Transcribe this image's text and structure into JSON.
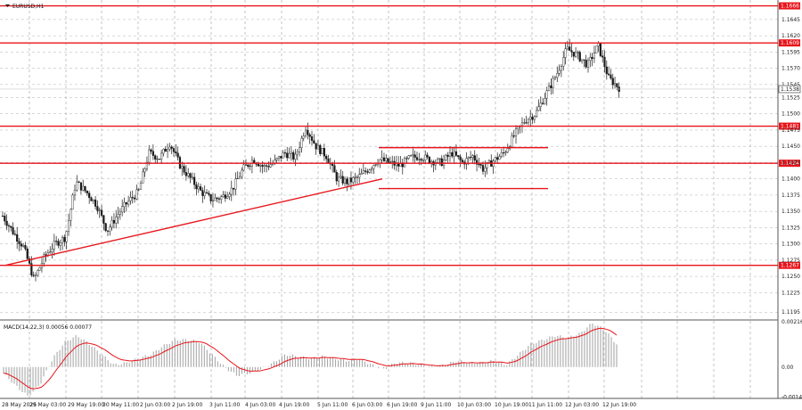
{
  "chart_data": [
    {
      "type": "candlestick",
      "title": "EURUSD,H1",
      "title_icon": "triangle-down-icon",
      "grid": true,
      "grid_style": "dashed",
      "ylim": [
        1.1183,
        1.1675
      ],
      "y_ticks": [
        "1.1645",
        "1.1620",
        "1.1595",
        "1.1570",
        "1.1545",
        "1.1525",
        "1.1500",
        "1.1475",
        "1.1450",
        "1.1425",
        "1.1400",
        "1.1375",
        "1.1350",
        "1.1325",
        "1.1300",
        "1.1275",
        "1.1250",
        "1.1225",
        "1.1195"
      ],
      "x_ticks": [
        "28 May 2025",
        "29 May 03:00",
        "29 May 19:00",
        "30 May 11:00",
        "2 Jun 03:00",
        "2 Jun 19:00",
        "3 Jun 11:00",
        "4 Jun 03:00",
        "4 Jun 19:00",
        "5 Jun 11:00",
        "6 Jun 03:00",
        "6 Jun 19:00",
        "9 Jun 11:00",
        "10 Jun 03:00",
        "10 Jun 19:00",
        "11 Jun 11:00",
        "12 Jun 03:00",
        "12 Jun 19:00"
      ],
      "current_price": "1.1538",
      "price_path": [
        1.1343,
        1.1318,
        1.1295,
        1.1245,
        1.128,
        1.13,
        1.131,
        1.1395,
        1.138,
        1.136,
        1.132,
        1.1345,
        1.1365,
        1.138,
        1.144,
        1.1432,
        1.1455,
        1.142,
        1.14,
        1.138,
        1.1368,
        1.1372,
        1.1385,
        1.1415,
        1.143,
        1.1418,
        1.1425,
        1.144,
        1.1432,
        1.148,
        1.145,
        1.1435,
        1.14,
        1.1395,
        1.1402,
        1.1415,
        1.143,
        1.1425,
        1.142,
        1.1432,
        1.1435,
        1.1428,
        1.1425,
        1.144,
        1.1425,
        1.1435,
        1.1415,
        1.1428,
        1.144,
        1.1468,
        1.149,
        1.15,
        1.153,
        1.156,
        1.16,
        1.159,
        1.1575,
        1.1605,
        1.1555,
        1.154
      ],
      "levels": [
        {
          "label": "1.1666",
          "value": 1.1666
        },
        {
          "label": "1.1609",
          "value": 1.1609
        },
        {
          "label": "1.1481",
          "value": 1.1481
        },
        {
          "label": "1.1424",
          "value": 1.1424
        },
        {
          "label": "1.1267",
          "value": 1.1267
        }
      ],
      "trendline": {
        "from": {
          "x": "28 May 2025",
          "y": 1.1267
        },
        "to": {
          "x": "6 Jun 03:00",
          "y": 1.14
        }
      },
      "channel": {
        "x_from": "6 Jun 03:00",
        "x_to": "11 Jun 11:00",
        "upper": 1.1448,
        "lower": 1.1385
      }
    },
    {
      "type": "histogram",
      "title": "MACD(14,22,3) 0.00056 0.00077",
      "ylim": [
        -0.0015,
        0.00225
      ],
      "y_ticks": [
        "0.00216",
        "0.00",
        "-0.00143"
      ],
      "histogram_path": [
        -0.0003,
        -0.0009,
        -0.0014,
        -0.0008,
        0.0004,
        0.0012,
        0.0015,
        0.0011,
        0.0006,
        0.0001,
        0.0002,
        0.0004,
        0.0006,
        0.001,
        0.0013,
        0.0013,
        0.0012,
        0.0006,
        0.0,
        -0.0004,
        -0.0003,
        -0.0001,
        0.0002,
        0.0006,
        0.0005,
        0.0004,
        0.0005,
        0.0004,
        0.0003,
        0.0004,
        0.0001,
        -0.0001,
        0.0002,
        0.0002,
        0.0001,
        0.0,
        0.0001,
        0.0003,
        0.0002,
        0.0002,
        0.0003,
        0.0001,
        0.0006,
        0.0011,
        0.0013,
        0.0015,
        0.0014,
        0.0016,
        0.0021,
        0.0018,
        0.0011
      ],
      "signal_color": "#e8141b"
    }
  ],
  "colors": {
    "level": "#e8141b",
    "candle": "#1a1a1a",
    "grid": "#9aa0a6",
    "bar": "#a8a8a8"
  }
}
